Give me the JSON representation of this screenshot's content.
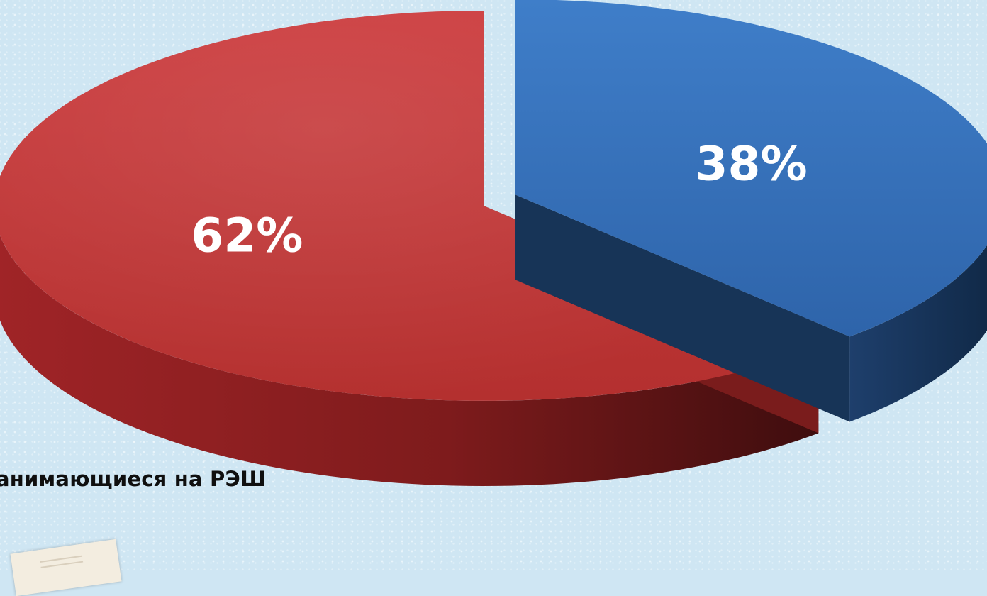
{
  "chart_data": {
    "type": "pie",
    "style": "3d-exploded",
    "legend_placement": "bottom-left",
    "slices": [
      {
        "label": "",
        "value": 38,
        "display": "38%",
        "color": "#3a74bf"
      },
      {
        "label": "…анимающиеся на РЭШ",
        "value": 62,
        "display": "62%",
        "color": "#c0373a"
      }
    ]
  },
  "legend": {
    "text": "анимающиеся на РЭШ"
  }
}
